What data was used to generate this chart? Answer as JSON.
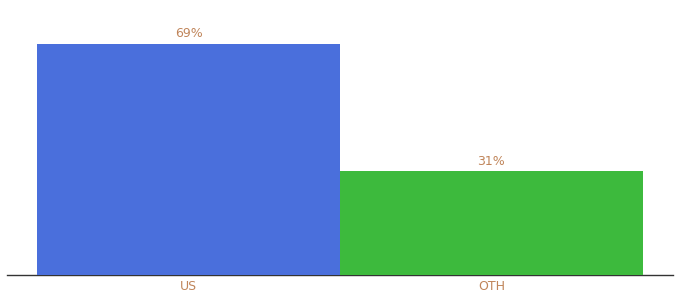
{
  "categories": [
    "US",
    "OTH"
  ],
  "values": [
    69,
    31
  ],
  "bar_colors": [
    "#4a6fdc",
    "#3dba3d"
  ],
  "label_color": "#c0855a",
  "label_fontsize": 9,
  "tick_label_color": "#c0855a",
  "bar_width": 0.5,
  "ylim": [
    0,
    80
  ],
  "background_color": "#ffffff",
  "xlabel_fontsize": 9,
  "spine_color": "#333333"
}
